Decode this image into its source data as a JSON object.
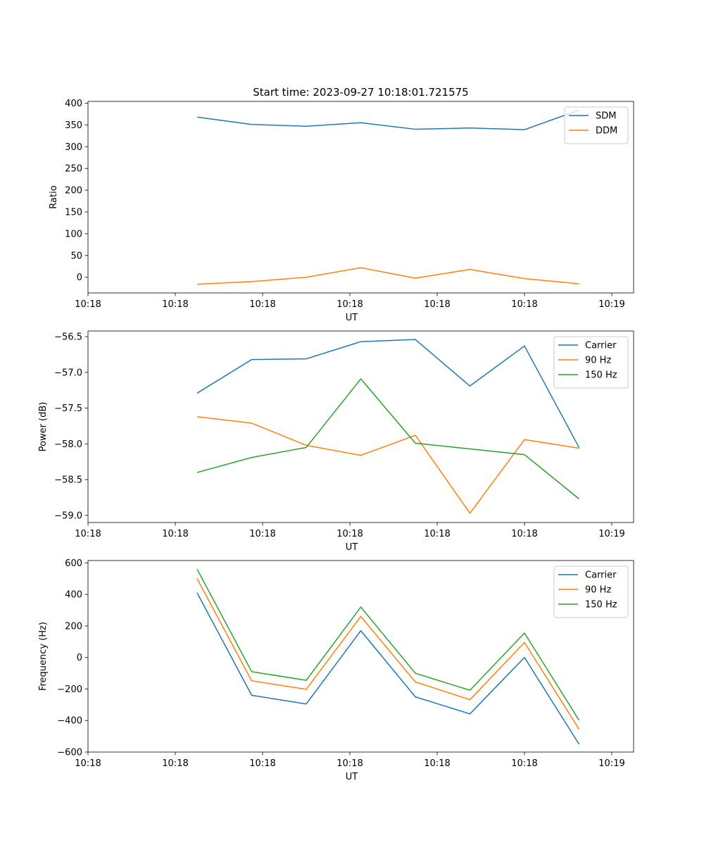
{
  "figure": {
    "title": "Start time: 2023-09-27 10:18:01.721575"
  },
  "chart_data": [
    {
      "type": "line",
      "title": "Start time: 2023-09-27 10:18:01.721575",
      "xlabel": "UT",
      "ylabel": "Ratio",
      "x": [
        1.0,
        1.5,
        2.0,
        2.5,
        3.0,
        3.5,
        4.0,
        4.5
      ],
      "xlim": [
        0.0,
        5.0
      ],
      "xticks": [
        0,
        0.8,
        1.6,
        2.4,
        3.2,
        4.0,
        4.8
      ],
      "xtick_labels": [
        "10:18",
        "10:18",
        "10:18",
        "10:18",
        "10:18",
        "10:18",
        "10:19"
      ],
      "ylim": [
        -36,
        404
      ],
      "yticks": [
        0,
        50,
        100,
        150,
        200,
        250,
        300,
        350,
        400
      ],
      "ytick_labels": [
        "0",
        "50",
        "100",
        "150",
        "200",
        "250",
        "300",
        "350",
        "400"
      ],
      "legend": "top-right",
      "series": [
        {
          "name": "SDM",
          "color": "#1f77b4",
          "values": [
            368,
            351,
            347,
            355,
            340,
            343,
            339,
            384
          ]
        },
        {
          "name": "DDM",
          "color": "#ff7f0e",
          "values": [
            -16,
            -10,
            0,
            22,
            -2,
            18,
            -3,
            -15
          ]
        }
      ]
    },
    {
      "type": "line",
      "xlabel": "UT",
      "ylabel": "Power (dB)",
      "x": [
        1.0,
        1.5,
        2.0,
        2.5,
        3.0,
        3.5,
        4.0,
        4.5
      ],
      "xlim": [
        0.0,
        5.0
      ],
      "xticks": [
        0,
        0.8,
        1.6,
        2.4,
        3.2,
        4.0,
        4.8
      ],
      "xtick_labels": [
        "10:18",
        "10:18",
        "10:18",
        "10:18",
        "10:18",
        "10:18",
        "10:19"
      ],
      "ylim": [
        -59.1,
        -56.42
      ],
      "yticks": [
        -59.0,
        -58.5,
        -58.0,
        -57.5,
        -57.0,
        -56.5
      ],
      "ytick_labels": [
        "−59.0",
        "−58.5",
        "−58.0",
        "−57.5",
        "−57.0",
        "−56.5"
      ],
      "legend": "top-right",
      "series": [
        {
          "name": "Carrier",
          "color": "#1f77b4",
          "values": [
            -57.29,
            -56.82,
            -56.81,
            -56.57,
            -56.54,
            -57.19,
            -56.63,
            -58.05
          ]
        },
        {
          "name": "90 Hz",
          "color": "#ff7f0e",
          "values": [
            -57.62,
            -57.71,
            -58.02,
            -58.16,
            -57.88,
            -58.97,
            -57.94,
            -58.06
          ]
        },
        {
          "name": "150 Hz",
          "color": "#2ca02c",
          "values": [
            -58.4,
            -58.19,
            -58.05,
            -57.09,
            -57.99,
            -58.07,
            -58.15,
            -58.77
          ]
        }
      ]
    },
    {
      "type": "line",
      "xlabel": "UT",
      "ylabel": "Frequency (Hz)",
      "x": [
        1.0,
        1.5,
        2.0,
        2.5,
        3.0,
        3.5,
        4.0,
        4.5
      ],
      "xlim": [
        0.0,
        5.0
      ],
      "xticks": [
        0,
        0.8,
        1.6,
        2.4,
        3.2,
        4.0,
        4.8
      ],
      "xtick_labels": [
        "10:18",
        "10:18",
        "10:18",
        "10:18",
        "10:18",
        "10:18",
        "10:19"
      ],
      "ylim": [
        -600,
        615
      ],
      "yticks": [
        -600,
        -400,
        -200,
        0,
        200,
        400,
        600
      ],
      "ytick_labels": [
        "−600",
        "−400",
        "−200",
        "0",
        "200",
        "400",
        "600"
      ],
      "legend": "top-right",
      "series": [
        {
          "name": "Carrier",
          "color": "#1f77b4",
          "values": [
            410,
            -240,
            -295,
            170,
            -250,
            -358,
            0,
            -550
          ]
        },
        {
          "name": "90 Hz",
          "color": "#ff7f0e",
          "values": [
            500,
            -148,
            -202,
            260,
            -155,
            -268,
            95,
            -455
          ]
        },
        {
          "name": "150 Hz",
          "color": "#2ca02c",
          "values": [
            560,
            -90,
            -145,
            320,
            -100,
            -208,
            155,
            -398
          ]
        }
      ]
    }
  ]
}
